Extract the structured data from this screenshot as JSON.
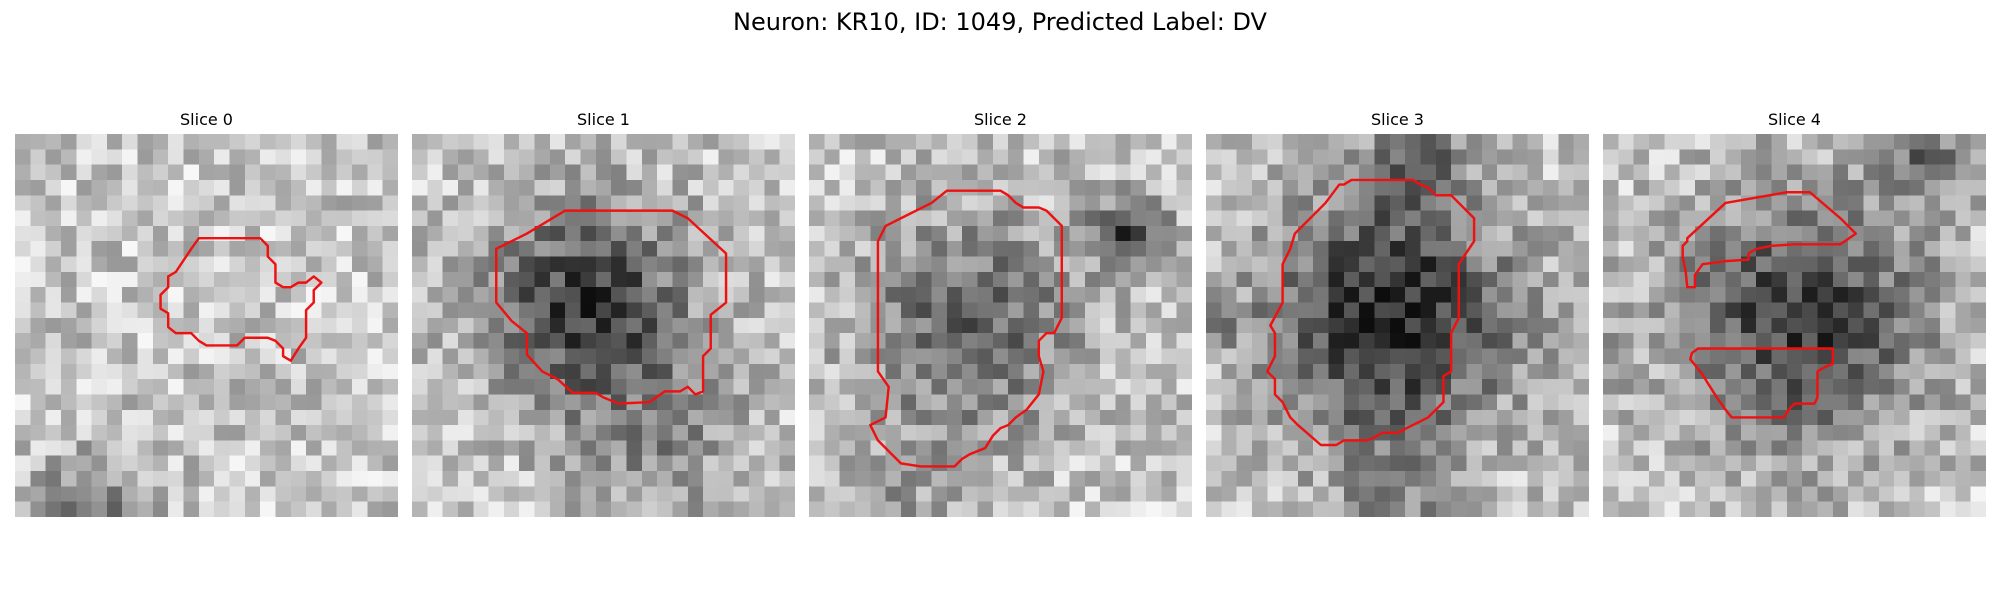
{
  "figure": {
    "title": "Neuron: KR10, ID: 1049, Predicted Label: DV",
    "contour_color": "#ee1111",
    "colormap": "gray"
  },
  "panels": [
    {
      "title": "Slice 0",
      "seed": 11,
      "contour": [
        [
          12,
          6.8
        ],
        [
          14,
          6.8
        ],
        [
          16,
          6.8
        ],
        [
          16.5,
          7.3
        ],
        [
          16.5,
          8
        ],
        [
          17,
          8.5
        ],
        [
          17,
          9.7
        ],
        [
          17.5,
          10
        ],
        [
          18,
          10
        ],
        [
          18.5,
          9.7
        ],
        [
          19,
          9.7
        ],
        [
          19.5,
          9.3
        ],
        [
          20,
          9.7
        ],
        [
          19.5,
          10.2
        ],
        [
          19.5,
          11
        ],
        [
          19,
          11.5
        ],
        [
          19,
          13.3
        ],
        [
          18.5,
          14
        ],
        [
          18,
          14.8
        ],
        [
          17.5,
          14.5
        ],
        [
          17.5,
          14
        ],
        [
          17,
          13.5
        ],
        [
          16.5,
          13.3
        ],
        [
          15,
          13.3
        ],
        [
          14.5,
          13.8
        ],
        [
          12.5,
          13.8
        ],
        [
          12,
          13.5
        ],
        [
          11.5,
          13
        ],
        [
          10.5,
          13
        ],
        [
          10,
          12.6
        ],
        [
          10,
          11.7
        ],
        [
          9.5,
          11.4
        ],
        [
          9.5,
          10.5
        ],
        [
          10,
          10
        ],
        [
          10,
          9.3
        ],
        [
          10.5,
          9
        ],
        [
          11.5,
          7.5
        ]
      ]
    },
    {
      "title": "Slice 1",
      "seed": 23,
      "contour": [
        [
          7.5,
          6.5
        ],
        [
          10,
          5
        ],
        [
          17,
          5
        ],
        [
          18,
          5.5
        ],
        [
          20.5,
          7.8
        ],
        [
          20.5,
          11
        ],
        [
          19.5,
          11.8
        ],
        [
          19.5,
          14
        ],
        [
          19,
          14.5
        ],
        [
          19,
          16.8
        ],
        [
          18.5,
          17
        ],
        [
          18,
          16.5
        ],
        [
          17.5,
          16.8
        ],
        [
          16.5,
          16.8
        ],
        [
          15.5,
          17.5
        ],
        [
          13.5,
          17.6
        ],
        [
          12.5,
          17.2
        ],
        [
          12,
          16.9
        ],
        [
          10.5,
          16.9
        ],
        [
          9.5,
          16
        ],
        [
          8.5,
          15.5
        ],
        [
          7.5,
          14.4
        ],
        [
          7.5,
          13
        ],
        [
          6.5,
          12.2
        ],
        [
          5.5,
          11
        ],
        [
          5.5,
          7.5
        ]
      ]
    },
    {
      "title": "Slice 2",
      "seed": 37,
      "contour": [
        [
          8,
          4.5
        ],
        [
          9,
          3.7
        ],
        [
          12.5,
          3.7
        ],
        [
          13,
          4
        ],
        [
          13.5,
          4.5
        ],
        [
          14,
          4.8
        ],
        [
          15,
          4.8
        ],
        [
          15.5,
          5
        ],
        [
          16,
          5.5
        ],
        [
          16.5,
          6
        ],
        [
          16.5,
          9
        ],
        [
          16.5,
          12
        ],
        [
          16,
          13
        ],
        [
          15.5,
          13
        ],
        [
          15,
          13.5
        ],
        [
          15,
          14.5
        ],
        [
          15.3,
          15.5
        ],
        [
          15,
          17
        ],
        [
          14.2,
          18
        ],
        [
          13.5,
          18.5
        ],
        [
          13,
          19
        ],
        [
          12.5,
          19.2
        ],
        [
          12,
          19.7
        ],
        [
          11.5,
          20.5
        ],
        [
          10.5,
          20.9
        ],
        [
          10,
          21.2
        ],
        [
          9.5,
          21.7
        ],
        [
          7.3,
          21.7
        ],
        [
          6,
          21.5
        ],
        [
          5.5,
          21
        ],
        [
          4.5,
          20
        ],
        [
          4,
          19
        ],
        [
          5,
          18.5
        ],
        [
          5.2,
          16.5
        ],
        [
          4.5,
          15.5
        ],
        [
          4.5,
          12
        ],
        [
          4.5,
          7
        ],
        [
          5,
          6
        ],
        [
          6,
          5.5
        ]
      ]
    },
    {
      "title": "Slice 3",
      "seed": 53,
      "contour": [
        [
          8.7,
          3.3
        ],
        [
          9,
          3.3
        ],
        [
          9.5,
          3
        ],
        [
          13.5,
          3
        ],
        [
          14,
          3.3
        ],
        [
          14.5,
          3.5
        ],
        [
          15,
          4
        ],
        [
          16,
          4
        ],
        [
          16.5,
          4.5
        ],
        [
          17.5,
          5.5
        ],
        [
          17.5,
          7
        ],
        [
          16.5,
          8.5
        ],
        [
          16.5,
          12
        ],
        [
          16,
          13
        ],
        [
          16,
          15.5
        ],
        [
          15.5,
          15.8
        ],
        [
          15.5,
          17.5
        ],
        [
          14.5,
          18.5
        ],
        [
          13.5,
          19
        ],
        [
          12.5,
          19.5
        ],
        [
          11.5,
          19.5
        ],
        [
          11,
          19.8
        ],
        [
          10.5,
          20
        ],
        [
          9,
          20
        ],
        [
          8.5,
          20.3
        ],
        [
          7.5,
          20.3
        ],
        [
          6,
          19
        ],
        [
          5.5,
          18.5
        ],
        [
          5,
          17.5
        ],
        [
          4.5,
          17
        ],
        [
          4.5,
          16
        ],
        [
          4,
          15.5
        ],
        [
          4.5,
          14.5
        ],
        [
          4.5,
          13
        ],
        [
          4.2,
          12.5
        ],
        [
          5,
          11
        ],
        [
          5,
          8.5
        ],
        [
          5.5,
          7.5
        ],
        [
          5.8,
          6.5
        ],
        [
          7.8,
          4.5
        ]
      ]
    },
    {
      "title": "Slice 4",
      "seed": 71,
      "contour": [
        [
          5.5,
          6.8
        ],
        [
          8,
          4.5
        ],
        [
          12,
          3.8
        ],
        [
          13.5,
          3.8
        ],
        [
          15.5,
          5.5
        ],
        [
          16.5,
          6.5
        ],
        [
          15.5,
          7.2
        ],
        [
          14.5,
          7.2
        ],
        [
          13.5,
          7.2
        ],
        [
          12.5,
          7.2
        ],
        [
          11,
          7.3
        ],
        [
          10,
          7.5
        ],
        [
          9.5,
          7.8
        ],
        [
          9.5,
          8.2
        ],
        [
          8,
          8.3
        ],
        [
          6.5,
          8.5
        ],
        [
          6,
          9.2
        ],
        [
          6,
          10
        ],
        [
          5.5,
          10
        ],
        [
          5.4,
          9
        ],
        [
          5.2,
          8
        ],
        [
          5.2,
          7.3
        ],
        [
          5.5,
          7
        ],
        [
          5.5,
          6.8
        ]
      ]
    }
  ],
  "extra_contour_slice4": [
    [
      6.2,
      14
    ],
    [
      10,
      14
    ],
    [
      14,
      14
    ],
    [
      15,
      14
    ],
    [
      15,
      15
    ],
    [
      14.5,
      15.2
    ],
    [
      14,
      15.5
    ],
    [
      14,
      17.2
    ],
    [
      13.8,
      17.6
    ],
    [
      12.5,
      17.6
    ],
    [
      12.2,
      17.9
    ],
    [
      12,
      18.2
    ],
    [
      11.8,
      18.5
    ],
    [
      9.7,
      18.5
    ],
    [
      8.4,
      18.5
    ],
    [
      8,
      18
    ],
    [
      7.5,
      17.3
    ],
    [
      6.8,
      16.2
    ],
    [
      6.5,
      15.7
    ],
    [
      6.1,
      15.2
    ],
    [
      5.7,
      14.7
    ],
    [
      5.8,
      14.3
    ]
  ]
}
